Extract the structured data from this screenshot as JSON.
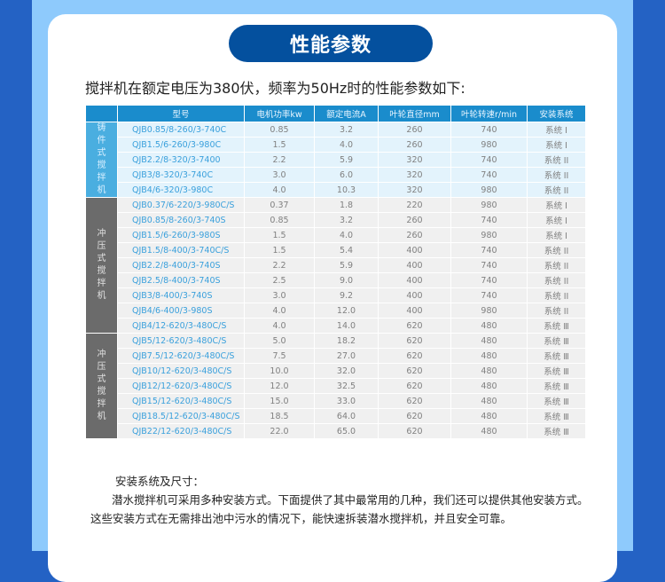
{
  "title": "性能参数",
  "intro": "搅拌机在额定电压为380伏，频率为50Hz时的性能参数如下:",
  "table": {
    "headers": [
      "",
      "型号",
      "电机功率kw",
      "额定电流A",
      "叶轮直径mm",
      "叶轮转速r/min",
      "安装系统"
    ],
    "groups": [
      {
        "label": "铸件式搅拌机",
        "color": "#4aaee0",
        "rows": [
          [
            "QJB0.85/8-260/3-740C",
            "0.85",
            "3.2",
            "260",
            "740",
            "系统 I"
          ],
          [
            "QJB1.5/6-260/3-980C",
            "1.5",
            "4.0",
            "260",
            "980",
            "系统 I"
          ],
          [
            "QJB2.2/8-320/3-7400",
            "2.2",
            "5.9",
            "320",
            "740",
            "系统 II"
          ],
          [
            "QJB3/8-320/3-740C",
            "3.0",
            "6.0",
            "320",
            "740",
            "系统 II"
          ],
          [
            "QJB4/6-320/3-980C",
            "4.0",
            "10.3",
            "320",
            "980",
            "系统 II"
          ]
        ]
      },
      {
        "label": "冲压式搅拌机",
        "color": "#6b6b6b",
        "rows": [
          [
            "QJB0.37/6-220/3-980C/S",
            "0.37",
            "1.8",
            "220",
            "980",
            "系统 I"
          ],
          [
            "QJB0.85/8-260/3-740S",
            "0.85",
            "3.2",
            "260",
            "740",
            "系统 I"
          ],
          [
            "QJB1.5/6-260/3-980S",
            "1.5",
            "4.0",
            "260",
            "980",
            "系统 I"
          ],
          [
            "QJB1.5/8-400/3-740C/S",
            "1.5",
            "5.4",
            "400",
            "740",
            "系统 II"
          ],
          [
            "QJB2.2/8-400/3-740S",
            "2.2",
            "5.9",
            "400",
            "740",
            "系统 II"
          ],
          [
            "QJB2.5/8-400/3-740S",
            "2.5",
            "9.0",
            "400",
            "740",
            "系统 II"
          ],
          [
            "QJB3/8-400/3-740S",
            "3.0",
            "9.2",
            "400",
            "740",
            "系统 II"
          ],
          [
            "QJB4/6-400/3-980S",
            "4.0",
            "12.0",
            "400",
            "980",
            "系统 II"
          ],
          [
            "QJB4/12-620/3-480C/S",
            "4.0",
            "14.0",
            "620",
            "480",
            "系统 Ⅲ"
          ]
        ]
      },
      {
        "label": "冲压式搅拌机",
        "color": "#6b6b6b",
        "rows": [
          [
            "QJB5/12-620/3-480C/S",
            "5.0",
            "18.2",
            "620",
            "480",
            "系统 Ⅲ"
          ],
          [
            "QJB7.5/12-620/3-480C/S",
            "7.5",
            "27.0",
            "620",
            "480",
            "系统 Ⅲ"
          ],
          [
            "QJB10/12-620/3-480C/S",
            "10.0",
            "32.0",
            "620",
            "480",
            "系统 Ⅲ"
          ],
          [
            "QJB12/12-620/3-480C/S",
            "12.0",
            "32.5",
            "620",
            "480",
            "系统 Ⅲ"
          ],
          [
            "QJB15/12-620/3-480C/S",
            "15.0",
            "33.0",
            "620",
            "480",
            "系统 Ⅲ"
          ],
          [
            "QJB18.5/12-620/3-480C/S",
            "18.5",
            "64.0",
            "620",
            "480",
            "系统 Ⅲ"
          ],
          [
            "QJB22/12-620/3-480C/S",
            "22.0",
            "65.0",
            "620",
            "480",
            "系统 Ⅲ"
          ]
        ]
      }
    ]
  },
  "notes": {
    "heading": "安装系统及尺寸：",
    "body": "潜水搅拌机可采用多种安装方式。下面提供了其中最常用的几种，我们还可以提供其他安装方式。这些安装方式在无需排出池中污水的情况下，能快速拆装潜水搅拌机，并且安全可靠。"
  }
}
